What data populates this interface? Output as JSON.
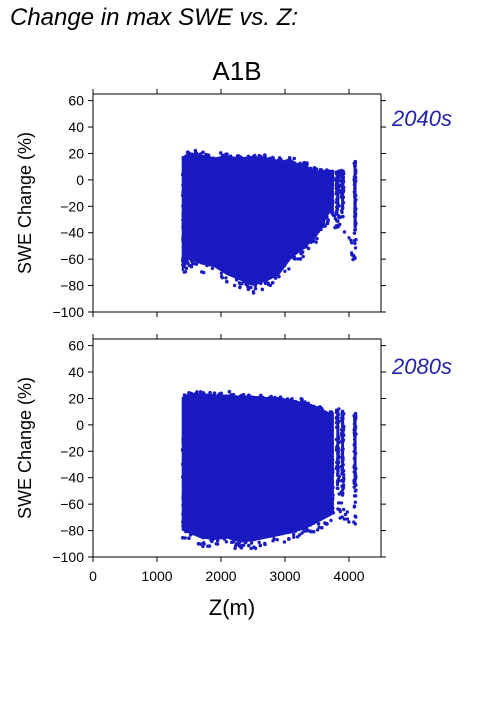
{
  "title": "Change in max SWE vs. Z:",
  "scenario": "A1B",
  "colors": {
    "points": "#1a1ac2",
    "period_label": "#2323a8"
  },
  "chart_data": [
    {
      "type": "scatter",
      "period": "2040s",
      "xlabel": "Z(m)",
      "ylabel": "SWE Change (%)",
      "xlim": [
        0,
        4500
      ],
      "ylim": [
        -100,
        65
      ],
      "xticks": [
        0,
        1000,
        2000,
        3000,
        4000
      ],
      "xtick_labels": [
        "0",
        "1000",
        "2000",
        "3000",
        "4000"
      ],
      "yticks": [
        -100,
        -80,
        -60,
        -40,
        -20,
        0,
        20,
        40,
        60
      ],
      "ytick_labels": [
        "−100",
        "−80",
        "−60",
        "−40",
        "−20",
        "0",
        "20",
        "40",
        "60"
      ],
      "point_envelope": [
        {
          "z": 1400,
          "min": -75,
          "max": 20
        },
        {
          "z": 1500,
          "min": -66,
          "max": 24
        },
        {
          "z": 1700,
          "min": -70,
          "max": 22
        },
        {
          "z": 1900,
          "min": -72,
          "max": 20
        },
        {
          "z": 2100,
          "min": -78,
          "max": 21
        },
        {
          "z": 2300,
          "min": -82,
          "max": 20
        },
        {
          "z": 2500,
          "min": -86,
          "max": 21
        },
        {
          "z": 2700,
          "min": -83,
          "max": 20
        },
        {
          "z": 2900,
          "min": -78,
          "max": 18
        },
        {
          "z": 3100,
          "min": -65,
          "max": 17
        },
        {
          "z": 3300,
          "min": -58,
          "max": 14
        },
        {
          "z": 3500,
          "min": -48,
          "max": 10
        },
        {
          "z": 3700,
          "min": -30,
          "max": 9
        },
        {
          "z": 3800,
          "min": -38,
          "max": 8
        },
        {
          "z": 3900,
          "min": -35,
          "max": 7
        },
        {
          "z": 4100,
          "min": -67,
          "max": 14
        }
      ]
    },
    {
      "type": "scatter",
      "period": "2080s",
      "xlabel": "Z(m)",
      "ylabel": "SWE Change (%)",
      "xlim": [
        0,
        4500
      ],
      "ylim": [
        -100,
        65
      ],
      "xticks": [
        0,
        1000,
        2000,
        3000,
        4000
      ],
      "xtick_labels": [
        "0",
        "1000",
        "2000",
        "3000",
        "4000"
      ],
      "yticks": [
        -100,
        -80,
        -60,
        -40,
        -20,
        0,
        20,
        40,
        60
      ],
      "ytick_labels": [
        "−100",
        "−80",
        "−60",
        "−40",
        "−20",
        "0",
        "20",
        "40",
        "60"
      ],
      "point_envelope": [
        {
          "z": 1400,
          "min": -86,
          "max": 24
        },
        {
          "z": 1500,
          "min": -88,
          "max": 27
        },
        {
          "z": 1700,
          "min": -92,
          "max": 27
        },
        {
          "z": 1900,
          "min": -93,
          "max": 26
        },
        {
          "z": 2100,
          "min": -92,
          "max": 26
        },
        {
          "z": 2300,
          "min": -95,
          "max": 25
        },
        {
          "z": 2500,
          "min": -94,
          "max": 25
        },
        {
          "z": 2700,
          "min": -92,
          "max": 24
        },
        {
          "z": 2900,
          "min": -90,
          "max": 24
        },
        {
          "z": 3100,
          "min": -88,
          "max": 22
        },
        {
          "z": 3300,
          "min": -85,
          "max": 20
        },
        {
          "z": 3500,
          "min": -80,
          "max": 17
        },
        {
          "z": 3700,
          "min": -75,
          "max": 12
        },
        {
          "z": 3800,
          "min": -72,
          "max": 13
        },
        {
          "z": 3900,
          "min": -70,
          "max": 12
        },
        {
          "z": 4100,
          "min": -80,
          "max": 10
        }
      ]
    }
  ]
}
